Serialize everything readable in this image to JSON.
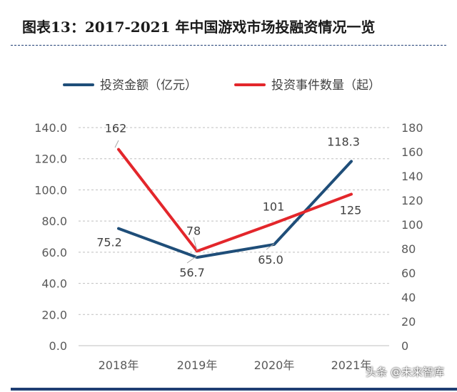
{
  "title": "图表13：2017-2021 年中国游戏市场投融资情况一览",
  "watermark": "头条 @未来智库",
  "chart_data": {
    "type": "line",
    "categories": [
      "2018年",
      "2019年",
      "2020年",
      "2021年"
    ],
    "series": [
      {
        "name": "投资金额（亿元）",
        "axis": "left",
        "color": "#1f4e79",
        "values": [
          75.2,
          56.7,
          65.0,
          118.3
        ],
        "labels": [
          "75.2",
          "56.7",
          "65.0",
          "118.3"
        ]
      },
      {
        "name": "投资事件数量（起）",
        "axis": "right",
        "color": "#e3262b",
        "values": [
          162,
          78,
          101,
          125
        ],
        "labels": [
          "162",
          "78",
          "101",
          "125"
        ]
      }
    ],
    "y_left": {
      "min": 0,
      "max": 140,
      "step": 20,
      "ticks": [
        "0.0",
        "20.0",
        "40.0",
        "60.0",
        "80.0",
        "100.0",
        "120.0",
        "140.0"
      ]
    },
    "y_right": {
      "min": 0,
      "max": 180,
      "step": 20,
      "ticks": [
        "0",
        "20",
        "40",
        "60",
        "80",
        "100",
        "120",
        "140",
        "160",
        "180"
      ]
    },
    "grid": true,
    "legend": "top"
  }
}
